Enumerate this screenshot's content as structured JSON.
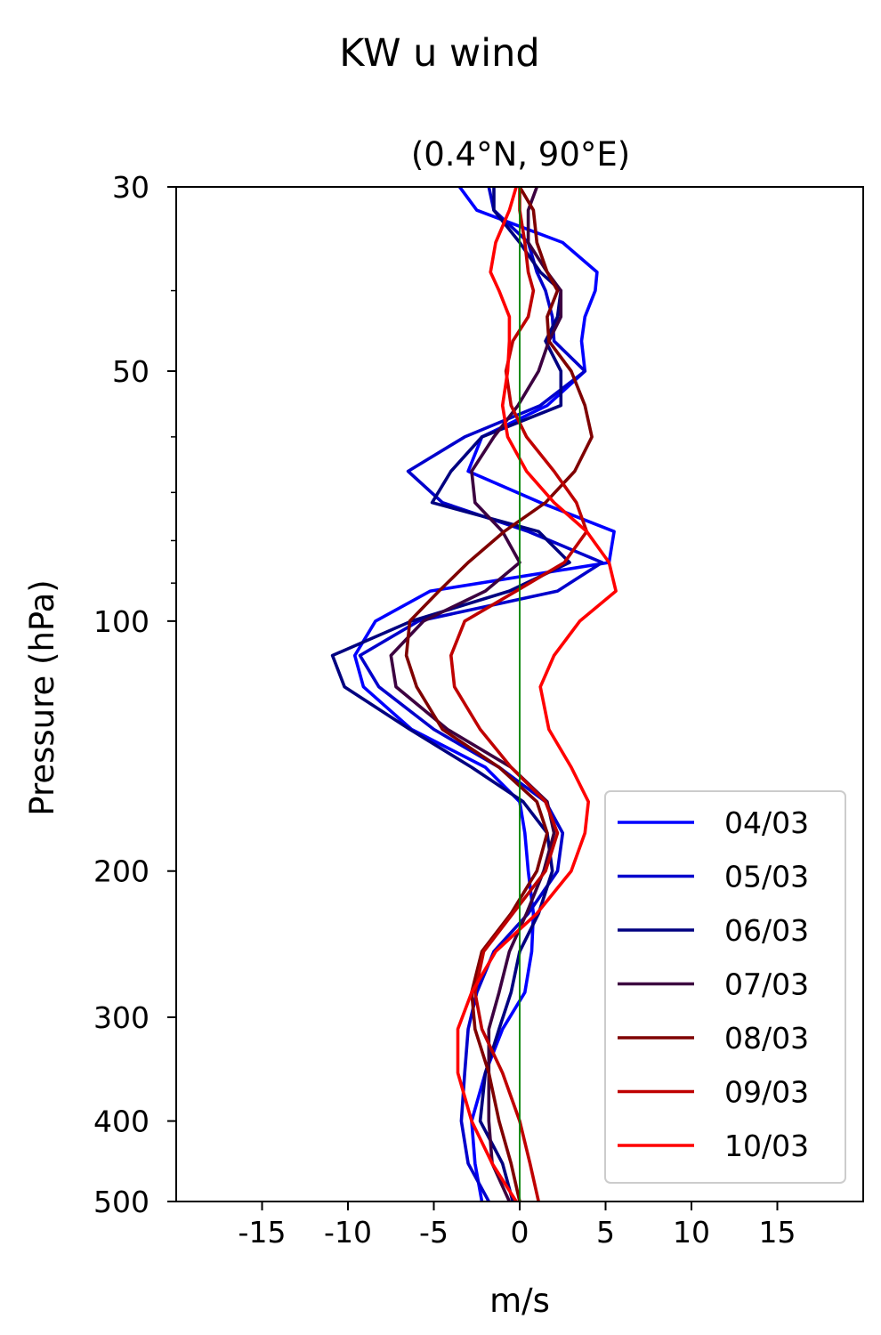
{
  "figure": {
    "suptitle": "KW u wind"
  },
  "chart_data": {
    "type": "line",
    "title": "(0.4°N, 90°E)",
    "xlabel": "m/s",
    "ylabel": "Pressure (hPa)",
    "xlim": [
      -20,
      20
    ],
    "ylim": [
      500,
      30
    ],
    "yscale": "log",
    "x_ticks": [
      -15,
      -10,
      -5,
      0,
      5,
      10,
      15
    ],
    "x_tick_labels": [
      "-15",
      "-10",
      "-5",
      "0",
      "5",
      "10",
      "15"
    ],
    "y_ticks": [
      30,
      50,
      100,
      200,
      300,
      400,
      500
    ],
    "y_tick_labels": [
      "30",
      "50",
      "100",
      "200",
      "300",
      "400",
      "500"
    ],
    "y_minor_ticks": [
      40,
      60,
      70,
      80,
      90
    ],
    "reference_line": {
      "x": 0,
      "color": "#008000"
    },
    "grid": false,
    "legend_position": "lower right",
    "pressure": [
      30,
      32,
      35,
      38,
      40,
      43,
      46,
      50,
      55,
      60,
      66,
      72,
      78,
      85,
      92,
      100,
      110,
      120,
      135,
      150,
      165,
      180,
      200,
      225,
      250,
      280,
      310,
      350,
      400,
      450,
      500
    ],
    "series": [
      {
        "name": "04/03",
        "color": "#0000ff",
        "u": [
          -3.5,
          -2.5,
          2.5,
          4.5,
          4.4,
          3.8,
          3.6,
          3.8,
          1.6,
          -2.2,
          -3.0,
          1.2,
          5.5,
          5.2,
          -5.2,
          -8.4,
          -9.6,
          -9.1,
          -6.3,
          -2.0,
          0.0,
          0.3,
          0.5,
          0.8,
          0.7,
          0.3,
          -1.0,
          -2.0,
          -2.8,
          -2.6,
          -2.2
        ]
      },
      {
        "name": "05/03",
        "color": "#0000cc",
        "u": [
          -1.8,
          -1.5,
          0.5,
          1.0,
          1.5,
          1.9,
          2.0,
          3.8,
          1.2,
          -3.2,
          -6.5,
          -4.5,
          0.5,
          4.8,
          2.2,
          -5.9,
          -9.3,
          -8.2,
          -5.0,
          -1.2,
          1.5,
          2.5,
          2.2,
          0.5,
          -1.5,
          -2.5,
          -3.0,
          -3.2,
          -3.4,
          -3.0,
          -1.8
        ]
      },
      {
        "name": "06/03",
        "color": "#000080",
        "u": [
          -1.5,
          -1.5,
          0.0,
          1.2,
          2.4,
          2.2,
          1.5,
          2.4,
          2.4,
          -2.2,
          -4.0,
          -5.1,
          1.1,
          2.9,
          -0.6,
          -6.3,
          -10.9,
          -10.2,
          -6.4,
          -2.8,
          0.2,
          1.6,
          1.9,
          1.1,
          0.0,
          -0.5,
          -1.2,
          -2.0,
          -2.3,
          -1.0,
          -0.4
        ]
      },
      {
        "name": "07/03",
        "color": "#3c0040",
        "u": [
          1.0,
          0.5,
          0.5,
          1.6,
          2.4,
          2.4,
          1.7,
          1.1,
          -0.1,
          -1.5,
          -2.8,
          -2.6,
          -1.0,
          0.0,
          -2.0,
          -5.6,
          -7.5,
          -7.2,
          -4.2,
          -0.5,
          1.6,
          2.0,
          1.4,
          0.4,
          -0.6,
          -1.2,
          -1.8,
          -1.8,
          -1.8,
          -1.6,
          -0.6
        ]
      },
      {
        "name": "08/03",
        "color": "#7f0000",
        "u": [
          0.0,
          0.8,
          1.0,
          1.6,
          2.2,
          1.6,
          1.7,
          3.0,
          3.8,
          4.2,
          3.2,
          1.5,
          -0.9,
          -3.0,
          -4.7,
          -6.4,
          -6.6,
          -6.0,
          -4.5,
          -1.2,
          1.0,
          1.6,
          1.0,
          -0.5,
          -2.2,
          -2.8,
          -2.6,
          -1.8,
          -1.2,
          -0.5,
          0.0
        ]
      },
      {
        "name": "09/03",
        "color": "#bf0000",
        "u": [
          0.0,
          0.0,
          0.3,
          0.5,
          0.8,
          0.5,
          -0.4,
          -0.8,
          -0.5,
          0.4,
          2.0,
          3.3,
          3.9,
          2.6,
          -0.2,
          -3.2,
          -4.0,
          -3.8,
          -2.3,
          -0.5,
          1.5,
          2.2,
          1.5,
          -0.4,
          -2.1,
          -2.6,
          -2.2,
          -1.0,
          0.0,
          0.6,
          1.1
        ]
      },
      {
        "name": "10/03",
        "color": "#ff0000",
        "u": [
          -0.2,
          -0.6,
          -1.4,
          -1.7,
          -1.2,
          -0.6,
          -0.6,
          -0.7,
          -1.0,
          -0.7,
          0.4,
          2.0,
          3.9,
          5.2,
          5.6,
          3.5,
          2.0,
          1.2,
          1.7,
          3.0,
          4.0,
          3.8,
          3.0,
          1.0,
          -1.4,
          -2.8,
          -3.6,
          -3.6,
          -2.8,
          -1.6,
          -0.2
        ]
      }
    ]
  }
}
